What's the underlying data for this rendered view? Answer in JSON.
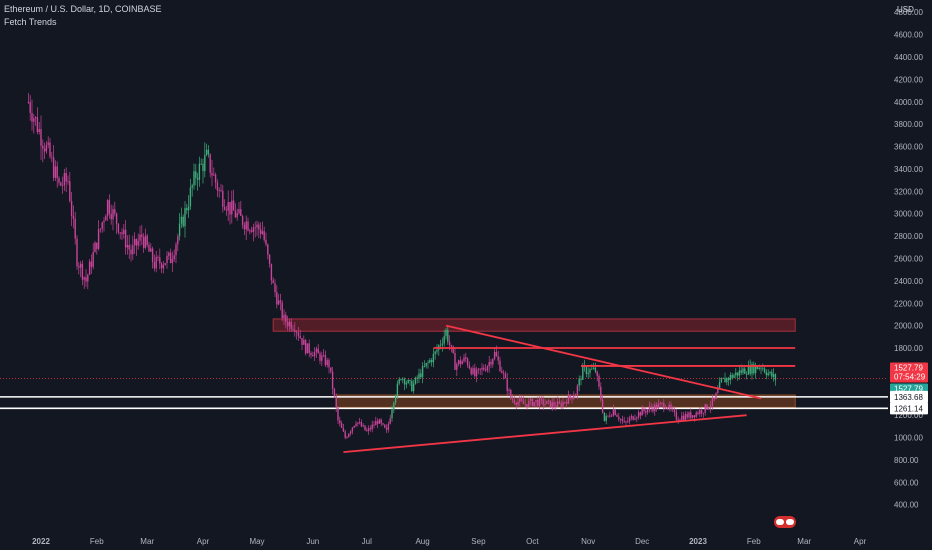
{
  "header": {
    "symbol": "Ethereum / U.S. Dollar, 1D, COINBASE",
    "indicator": "Fetch Trends"
  },
  "axis": {
    "currency": "USD"
  },
  "colors": {
    "background": "#131722",
    "bear": "#c9449a",
    "bull": "#3fae7a",
    "trendline": "#f23645",
    "price_badge": "#f23645",
    "price_badge2": "#26a69a",
    "zone_orange": "#5a3320",
    "zone_red": "#5b1e28"
  },
  "chart_data": {
    "type": "candlestick",
    "title": "Ethereum / U.S. Dollar, 1D, COINBASE",
    "x_tick_labels": [
      "2022",
      "Feb",
      "Mar",
      "Apr",
      "May",
      "Jun",
      "Jul",
      "Aug",
      "Sep",
      "Oct",
      "Nov",
      "Dec",
      "2023",
      "Feb",
      "Mar",
      "Apr"
    ],
    "y_tick_labels": [
      "400.00",
      "600.00",
      "800.00",
      "1000.00",
      "1200.00",
      "1400.00",
      "1600.00",
      "1800.00",
      "2000.00",
      "2200.00",
      "2400.00",
      "2600.00",
      "2800.00",
      "3000.00",
      "3200.00",
      "3400.00",
      "3600.00",
      "3800.00",
      "4000.00",
      "4200.00",
      "4400.00",
      "4600.00",
      "4800.00"
    ],
    "ylim": [
      350,
      5050
    ],
    "price_path": [
      [
        "2021-12-25",
        4000
      ],
      [
        "2022-01-01",
        3700
      ],
      [
        "2022-01-06",
        3500
      ],
      [
        "2022-01-11",
        3250
      ],
      [
        "2022-01-16",
        3300
      ],
      [
        "2022-01-21",
        2600
      ],
      [
        "2022-01-26",
        2400
      ],
      [
        "2022-02-01",
        2750
      ],
      [
        "2022-02-07",
        3100
      ],
      [
        "2022-02-13",
        2900
      ],
      [
        "2022-02-20",
        2650
      ],
      [
        "2022-02-26",
        2800
      ],
      [
        "2022-03-05",
        2550
      ],
      [
        "2022-03-14",
        2600
      ],
      [
        "2022-03-20",
        2900
      ],
      [
        "2022-03-28",
        3350
      ],
      [
        "2022-04-03",
        3500
      ],
      [
        "2022-04-10",
        3200
      ],
      [
        "2022-04-16",
        3050
      ],
      [
        "2022-04-22",
        2950
      ],
      [
        "2022-04-28",
        2900
      ],
      [
        "2022-05-04",
        2850
      ],
      [
        "2022-05-10",
        2350
      ],
      [
        "2022-05-16",
        2050
      ],
      [
        "2022-05-22",
        2000
      ],
      [
        "2022-05-28",
        1800
      ],
      [
        "2022-06-03",
        1750
      ],
      [
        "2022-06-10",
        1650
      ],
      [
        "2022-06-15",
        1150
      ],
      [
        "2022-06-19",
        1000
      ],
      [
        "2022-06-25",
        1150
      ],
      [
        "2022-07-01",
        1050
      ],
      [
        "2022-07-07",
        1150
      ],
      [
        "2022-07-12",
        1050
      ],
      [
        "2022-07-16",
        1350
      ],
      [
        "2022-07-20",
        1550
      ],
      [
        "2022-07-26",
        1450
      ],
      [
        "2022-08-01",
        1600
      ],
      [
        "2022-08-08",
        1750
      ],
      [
        "2022-08-14",
        1950
      ],
      [
        "2022-08-19",
        1650
      ],
      [
        "2022-08-25",
        1700
      ],
      [
        "2022-08-30",
        1550
      ],
      [
        "2022-09-06",
        1650
      ],
      [
        "2022-09-10",
        1750
      ],
      [
        "2022-09-14",
        1600
      ],
      [
        "2022-09-19",
        1350
      ],
      [
        "2022-09-26",
        1300
      ],
      [
        "2022-10-03",
        1320
      ],
      [
        "2022-10-10",
        1300
      ],
      [
        "2022-10-16",
        1290
      ],
      [
        "2022-10-25",
        1400
      ],
      [
        "2022-10-29",
        1600
      ],
      [
        "2022-11-05",
        1600
      ],
      [
        "2022-11-08",
        1350
      ],
      [
        "2022-11-10",
        1150
      ],
      [
        "2022-11-15",
        1250
      ],
      [
        "2022-11-21",
        1120
      ],
      [
        "2022-11-27",
        1200
      ],
      [
        "2022-12-05",
        1260
      ],
      [
        "2022-12-14",
        1300
      ],
      [
        "2022-12-20",
        1180
      ],
      [
        "2022-12-28",
        1200
      ],
      [
        "2023-01-04",
        1250
      ],
      [
        "2023-01-10",
        1330
      ],
      [
        "2023-01-14",
        1500
      ],
      [
        "2023-01-20",
        1550
      ],
      [
        "2023-01-26",
        1600
      ],
      [
        "2023-02-01",
        1620
      ],
      [
        "2023-02-05",
        1640
      ],
      [
        "2023-02-10",
        1560
      ],
      [
        "2023-02-13",
        1527.79
      ]
    ],
    "trendlines": [
      {
        "from": [
          "2022-06-18",
          870
        ],
        "to": [
          "2023-01-28",
          1200
        ]
      },
      {
        "from": [
          "2022-08-14",
          2000
        ],
        "to": [
          "2023-02-05",
          1350
        ]
      },
      {
        "from": [
          "2022-10-28",
          1640
        ],
        "to": [
          "2023-02-24",
          1640
        ]
      },
      {
        "from": [
          "2022-08-07",
          1800
        ],
        "to": [
          "2023-02-24",
          1800
        ]
      }
    ],
    "zones": [
      {
        "color": "red",
        "from_date": "2022-05-10",
        "to_date": "2023-02-24",
        "y_low": 1950,
        "y_high": 2060
      },
      {
        "color": "orange",
        "from_date": "2022-06-14",
        "to_date": "2023-02-24",
        "y_low": 1270,
        "y_high": 1380
      }
    ],
    "horizontal_levels": [
      1363.68,
      1261.14
    ],
    "last_price": 1527.79,
    "countdown": "07:54:29"
  }
}
